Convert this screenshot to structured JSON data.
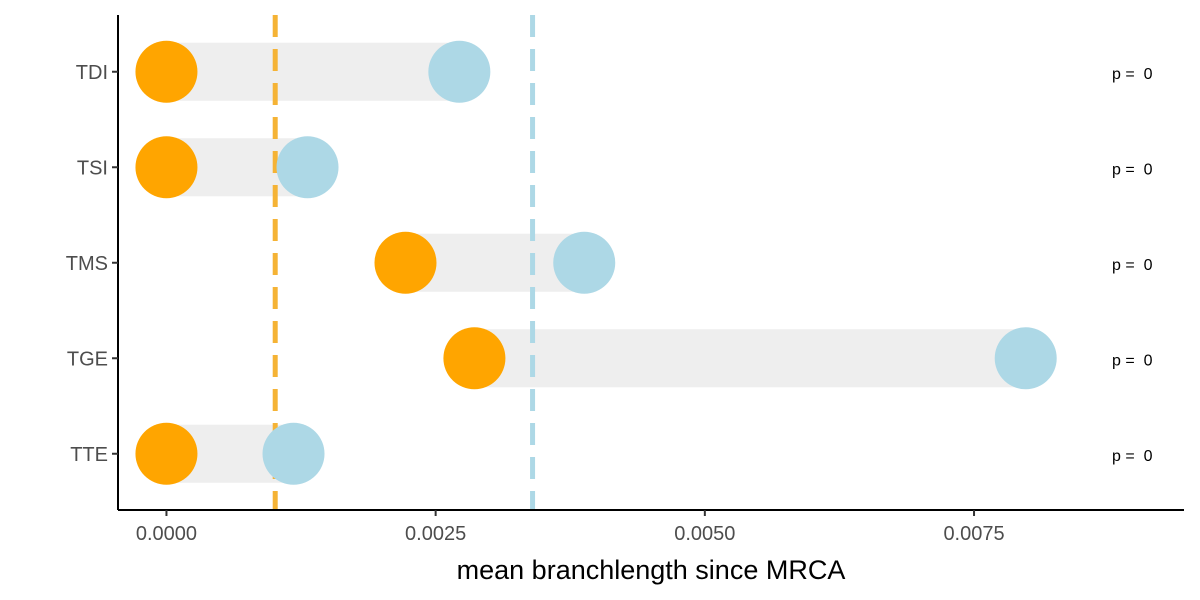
{
  "chart_data": {
    "type": "dumbbell",
    "xlabel": "mean branchlength since MRCA",
    "ylabel": "",
    "xlim": [
      -0.00045,
      0.00945
    ],
    "x_ticks": [
      0.0,
      0.0025,
      0.005,
      0.0075
    ],
    "x_tick_labels": [
      "0.0000",
      "0.0025",
      "0.0050",
      "0.0075"
    ],
    "categories": [
      "TDI",
      "TSI",
      "TMS",
      "TGE",
      "TTE"
    ],
    "series": [
      {
        "color": "#FFA500",
        "values": [
          0.0,
          0.0,
          0.00222,
          0.00286,
          0.0
        ]
      },
      {
        "color": "#ADD8E6",
        "values": [
          0.00272,
          0.00131,
          0.00388,
          0.00798,
          0.00118
        ]
      }
    ],
    "reference_lines": [
      {
        "x": 0.00101,
        "color": "#F5B335",
        "style": "dashed"
      },
      {
        "x": 0.0034,
        "color": "#ADD8E6",
        "style": "dashed"
      }
    ],
    "annotations": [
      "p =  0",
      "p =  0",
      "p =  0",
      "p =  0",
      "p =  0"
    ],
    "segment_color": "#EEEEEE",
    "grid": false,
    "legend": "none"
  }
}
